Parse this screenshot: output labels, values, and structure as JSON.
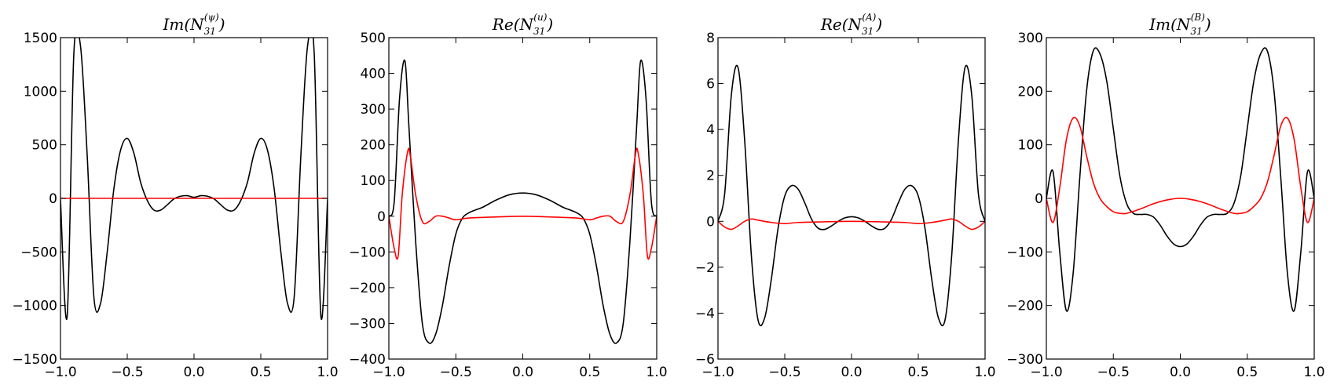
{
  "chart_data": [
    {
      "type": "line",
      "title": "Im(N31(ψ))",
      "title_parts": {
        "prefix": "Im(N",
        "sub": "31",
        "sup": "(ψ)",
        "suffix": ")"
      },
      "xlim": [
        -1.0,
        1.0
      ],
      "ylim": [
        -1500,
        1500
      ],
      "xticks": [
        -1.0,
        -0.5,
        0.0,
        0.5,
        1.0
      ],
      "xtick_labels": [
        "−1.0",
        "−0.5",
        "0.0",
        "0.5",
        "1.0"
      ],
      "yticks": [
        -1500,
        -1000,
        -500,
        0,
        500,
        1000,
        1500
      ],
      "ytick_labels": [
        "−1500",
        "−1000",
        "−500",
        "0",
        "500",
        "1000",
        "1500"
      ],
      "grid": false,
      "series": [
        {
          "color": "#000000",
          "symmetry": "even",
          "x": [
            0,
            0.05,
            0.1,
            0.15,
            0.2,
            0.25,
            0.3,
            0.35,
            0.4,
            0.45,
            0.5,
            0.55,
            0.6,
            0.65,
            0.7,
            0.75,
            0.8,
            0.85,
            0.9,
            0.95,
            1.0
          ],
          "y": [
            10,
            25,
            20,
            -5,
            -60,
            -110,
            -110,
            -20,
            150,
            420,
            560,
            450,
            90,
            -500,
            -980,
            -920,
            400,
            1420,
            1350,
            -1100,
            -10
          ]
        },
        {
          "color": "#ff0000",
          "symmetry": "even",
          "x": [
            0,
            0.25,
            0.5,
            0.75,
            1.0
          ],
          "y": [
            0,
            0,
            0,
            0,
            0
          ]
        }
      ]
    },
    {
      "type": "line",
      "title": "Re(N31(u))",
      "title_parts": {
        "prefix": "Re(N",
        "sub": "31",
        "sup": "(u)",
        "suffix": ")"
      },
      "xlim": [
        -1.0,
        1.0
      ],
      "ylim": [
        -400,
        500
      ],
      "xticks": [
        -1.0,
        -0.5,
        0.0,
        0.5,
        1.0
      ],
      "xtick_labels": [
        "−1.0",
        "−0.5",
        "0.0",
        "0.5",
        "1.0"
      ],
      "yticks": [
        -400,
        -300,
        -200,
        -100,
        0,
        100,
        200,
        300,
        400,
        500
      ],
      "ytick_labels": [
        "−400",
        "−300",
        "−200",
        "−100",
        "0",
        "100",
        "200",
        "300",
        "400",
        "500"
      ],
      "grid": false,
      "series": [
        {
          "color": "#000000",
          "symmetry": "even",
          "x": [
            0,
            0.1,
            0.2,
            0.3,
            0.35,
            0.4,
            0.45,
            0.5,
            0.55,
            0.6,
            0.65,
            0.7,
            0.75,
            0.8,
            0.85,
            0.88,
            0.92,
            0.96,
            1.0
          ],
          "y": [
            65,
            60,
            45,
            25,
            18,
            10,
            -5,
            -50,
            -140,
            -250,
            -330,
            -355,
            -300,
            -70,
            250,
            435,
            330,
            40,
            0
          ]
        },
        {
          "color": "#ff0000",
          "symmetry": "even",
          "x": [
            0,
            0.2,
            0.4,
            0.5,
            0.55,
            0.6,
            0.65,
            0.7,
            0.75,
            0.8,
            0.84,
            0.86,
            0.9,
            0.93,
            0.96,
            1.0
          ],
          "y": [
            0,
            -2,
            -5,
            -10,
            -5,
            0,
            0,
            -15,
            -15,
            60,
            170,
            180,
            60,
            -110,
            -90,
            0
          ]
        }
      ]
    },
    {
      "type": "line",
      "title": "Re(N31(A))",
      "title_parts": {
        "prefix": "Re(N",
        "sub": "31",
        "sup": "(A)",
        "suffix": ")"
      },
      "xlim": [
        -1.0,
        1.0
      ],
      "ylim": [
        -6,
        8
      ],
      "xticks": [
        -1.0,
        -0.5,
        0.0,
        0.5,
        1.0
      ],
      "xtick_labels": [
        "−1.0",
        "−0.5",
        "0.0",
        "0.5",
        "1.0"
      ],
      "yticks": [
        -6,
        -4,
        -2,
        0,
        2,
        4,
        6,
        8
      ],
      "ytick_labels": [
        "−6",
        "−4",
        "−2",
        "0",
        "2",
        "4",
        "6",
        "8"
      ],
      "grid": false,
      "series": [
        {
          "color": "#000000",
          "symmetry": "even",
          "x": [
            0,
            0.05,
            0.1,
            0.15,
            0.2,
            0.25,
            0.3,
            0.35,
            0.4,
            0.45,
            0.5,
            0.55,
            0.6,
            0.65,
            0.7,
            0.75,
            0.8,
            0.85,
            0.9,
            0.95,
            1.0
          ],
          "y": [
            0.2,
            0.15,
            0.0,
            -0.2,
            -0.35,
            -0.3,
            0.1,
            0.8,
            1.4,
            1.55,
            1.1,
            -0.3,
            -2.5,
            -4.2,
            -4.3,
            -1.5,
            3.5,
            6.7,
            5.5,
            1.2,
            0.0
          ]
        },
        {
          "color": "#ff0000",
          "symmetry": "even",
          "x": [
            0,
            0.2,
            0.4,
            0.5,
            0.6,
            0.7,
            0.75,
            0.8,
            0.85,
            0.9,
            0.95,
            1.0
          ],
          "y": [
            0.0,
            -0.02,
            -0.05,
            -0.1,
            -0.05,
            0.05,
            0.1,
            0.0,
            -0.2,
            -0.35,
            -0.25,
            0.0
          ]
        }
      ]
    },
    {
      "type": "line",
      "title": "Im(N31(B))",
      "title_parts": {
        "prefix": "Im(N",
        "sub": "31",
        "sup": "(B)",
        "suffix": ")"
      },
      "xlim": [
        -1.0,
        1.0
      ],
      "ylim": [
        -300,
        300
      ],
      "xticks": [
        -1.0,
        -0.5,
        0.0,
        0.5,
        1.0
      ],
      "xtick_labels": [
        "−1.0",
        "−0.5",
        "0.0",
        "0.5",
        "1.0"
      ],
      "yticks": [
        -300,
        -200,
        -100,
        0,
        100,
        200,
        300
      ],
      "ytick_labels": [
        "−300",
        "−200",
        "−100",
        "0",
        "100",
        "200",
        "300"
      ],
      "grid": false,
      "series": [
        {
          "color": "#000000",
          "symmetry": "even",
          "x": [
            0,
            0.05,
            0.1,
            0.15,
            0.2,
            0.25,
            0.3,
            0.35,
            0.4,
            0.45,
            0.5,
            0.55,
            0.6,
            0.65,
            0.7,
            0.75,
            0.8,
            0.85,
            0.9,
            0.95,
            1.0
          ],
          "y": [
            -90,
            -85,
            -70,
            -50,
            -35,
            -30,
            -30,
            -28,
            -10,
            40,
            130,
            220,
            270,
            275,
            200,
            40,
            -140,
            -210,
            -100,
            50,
            0
          ]
        },
        {
          "color": "#ff0000",
          "symmetry": "even",
          "x": [
            0,
            0.1,
            0.2,
            0.3,
            0.4,
            0.45,
            0.5,
            0.55,
            0.6,
            0.65,
            0.7,
            0.75,
            0.8,
            0.85,
            0.9,
            0.95,
            1.0
          ],
          "y": [
            0,
            -3,
            -10,
            -20,
            -28,
            -28,
            -25,
            -15,
            0,
            30,
            80,
            135,
            150,
            110,
            20,
            -45,
            0
          ]
        }
      ]
    }
  ]
}
